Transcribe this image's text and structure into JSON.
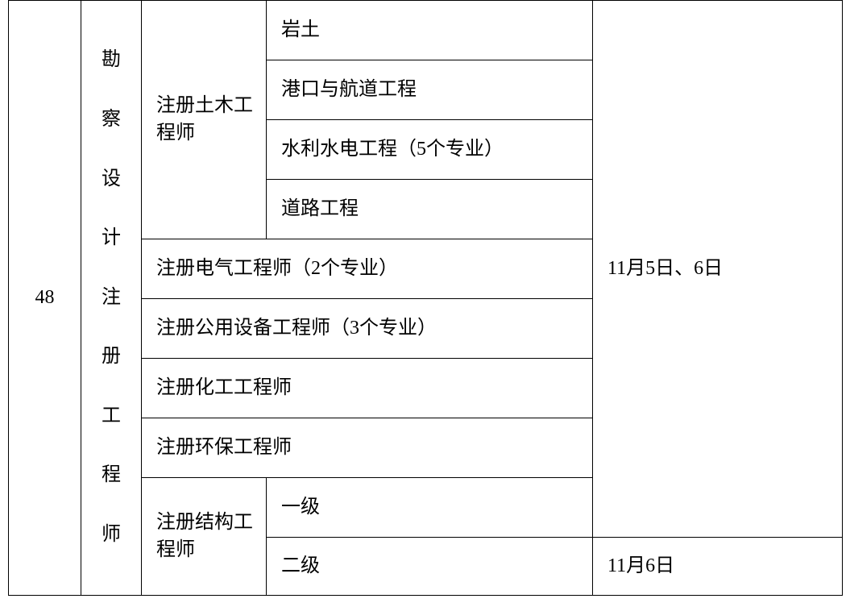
{
  "row_number": "48",
  "main_category": "勘察设计注册工程师",
  "civil_engineer_label": "注册土木工程师",
  "civil_specialties": {
    "s1": "岩土",
    "s2": "港口与航道工程",
    "s3": "水利水电工程（5个专业）",
    "s4": "道路工程"
  },
  "electrical_engineer": "注册电气工程师（2个专业）",
  "utility_engineer": "注册公用设备工程师（3个专业）",
  "chemical_engineer": "注册化工工程师",
  "env_engineer": "注册环保工程师",
  "structural_engineer_label": "注册结构工程师",
  "structural_levels": {
    "l1": "一级",
    "l2": "二级"
  },
  "date_main": "11月5日、6日",
  "date_l2": "11月6日",
  "style": {
    "border_color": "#000000",
    "background_color": "#ffffff",
    "text_color": "#000000",
    "font_size_pt": 18,
    "font_family": "SimSun"
  }
}
